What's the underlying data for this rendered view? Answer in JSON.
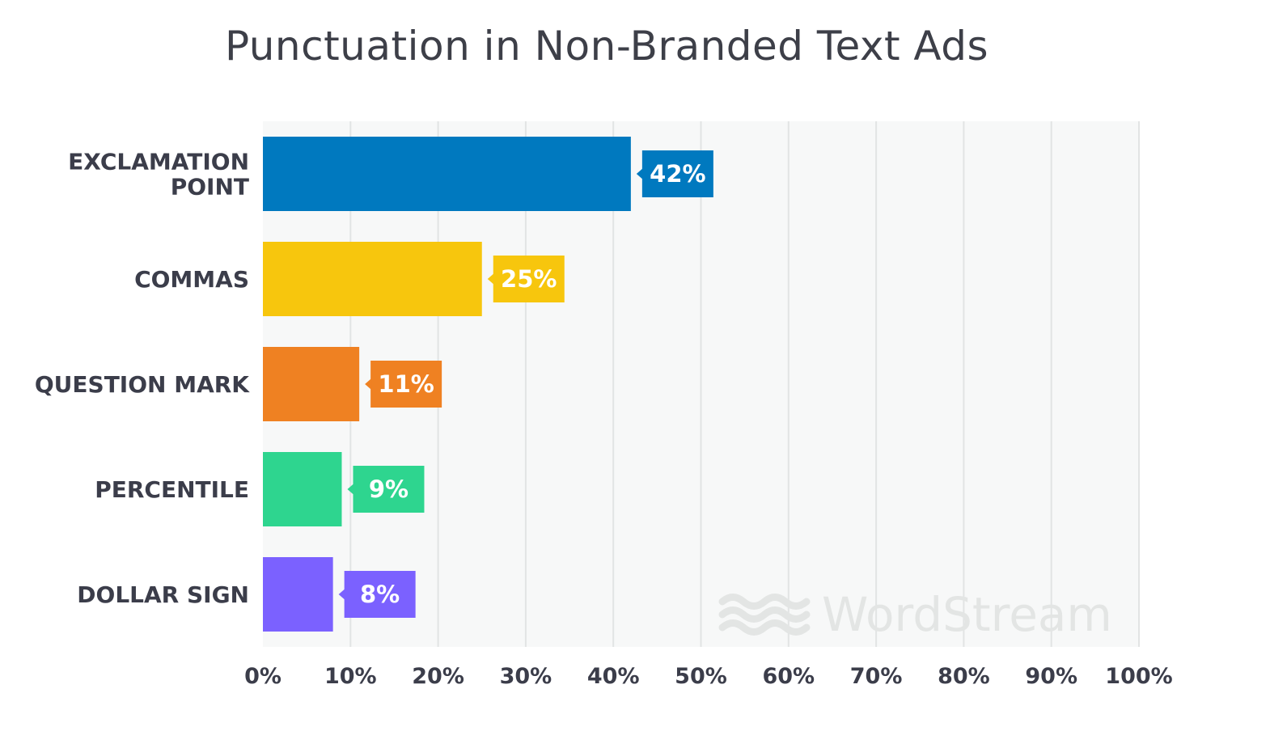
{
  "chart_data": {
    "type": "bar",
    "orientation": "horizontal",
    "title": "Punctuation in Non-Branded Text Ads",
    "categories": [
      "EXCLAMATION\nPOINT",
      "COMMAS",
      "QUESTION MARK",
      "PERCENTILE",
      "DOLLAR SIGN"
    ],
    "values": [
      42,
      25,
      11,
      9,
      8
    ],
    "data_labels": [
      "42%",
      "25%",
      "11%",
      "9%",
      "8%"
    ],
    "colors": [
      "#0079bf",
      "#f7c60d",
      "#ef8122",
      "#2ed58f",
      "#7b61ff"
    ],
    "xlim": [
      0,
      100
    ],
    "x_ticks": [
      "0%",
      "10%",
      "20%",
      "30%",
      "40%",
      "50%",
      "60%",
      "70%",
      "80%",
      "90%",
      "100%"
    ],
    "grid": true,
    "plot_background": "#f7f8f8",
    "gridline_color": "#e2e4e4",
    "watermark": "WordStream"
  }
}
